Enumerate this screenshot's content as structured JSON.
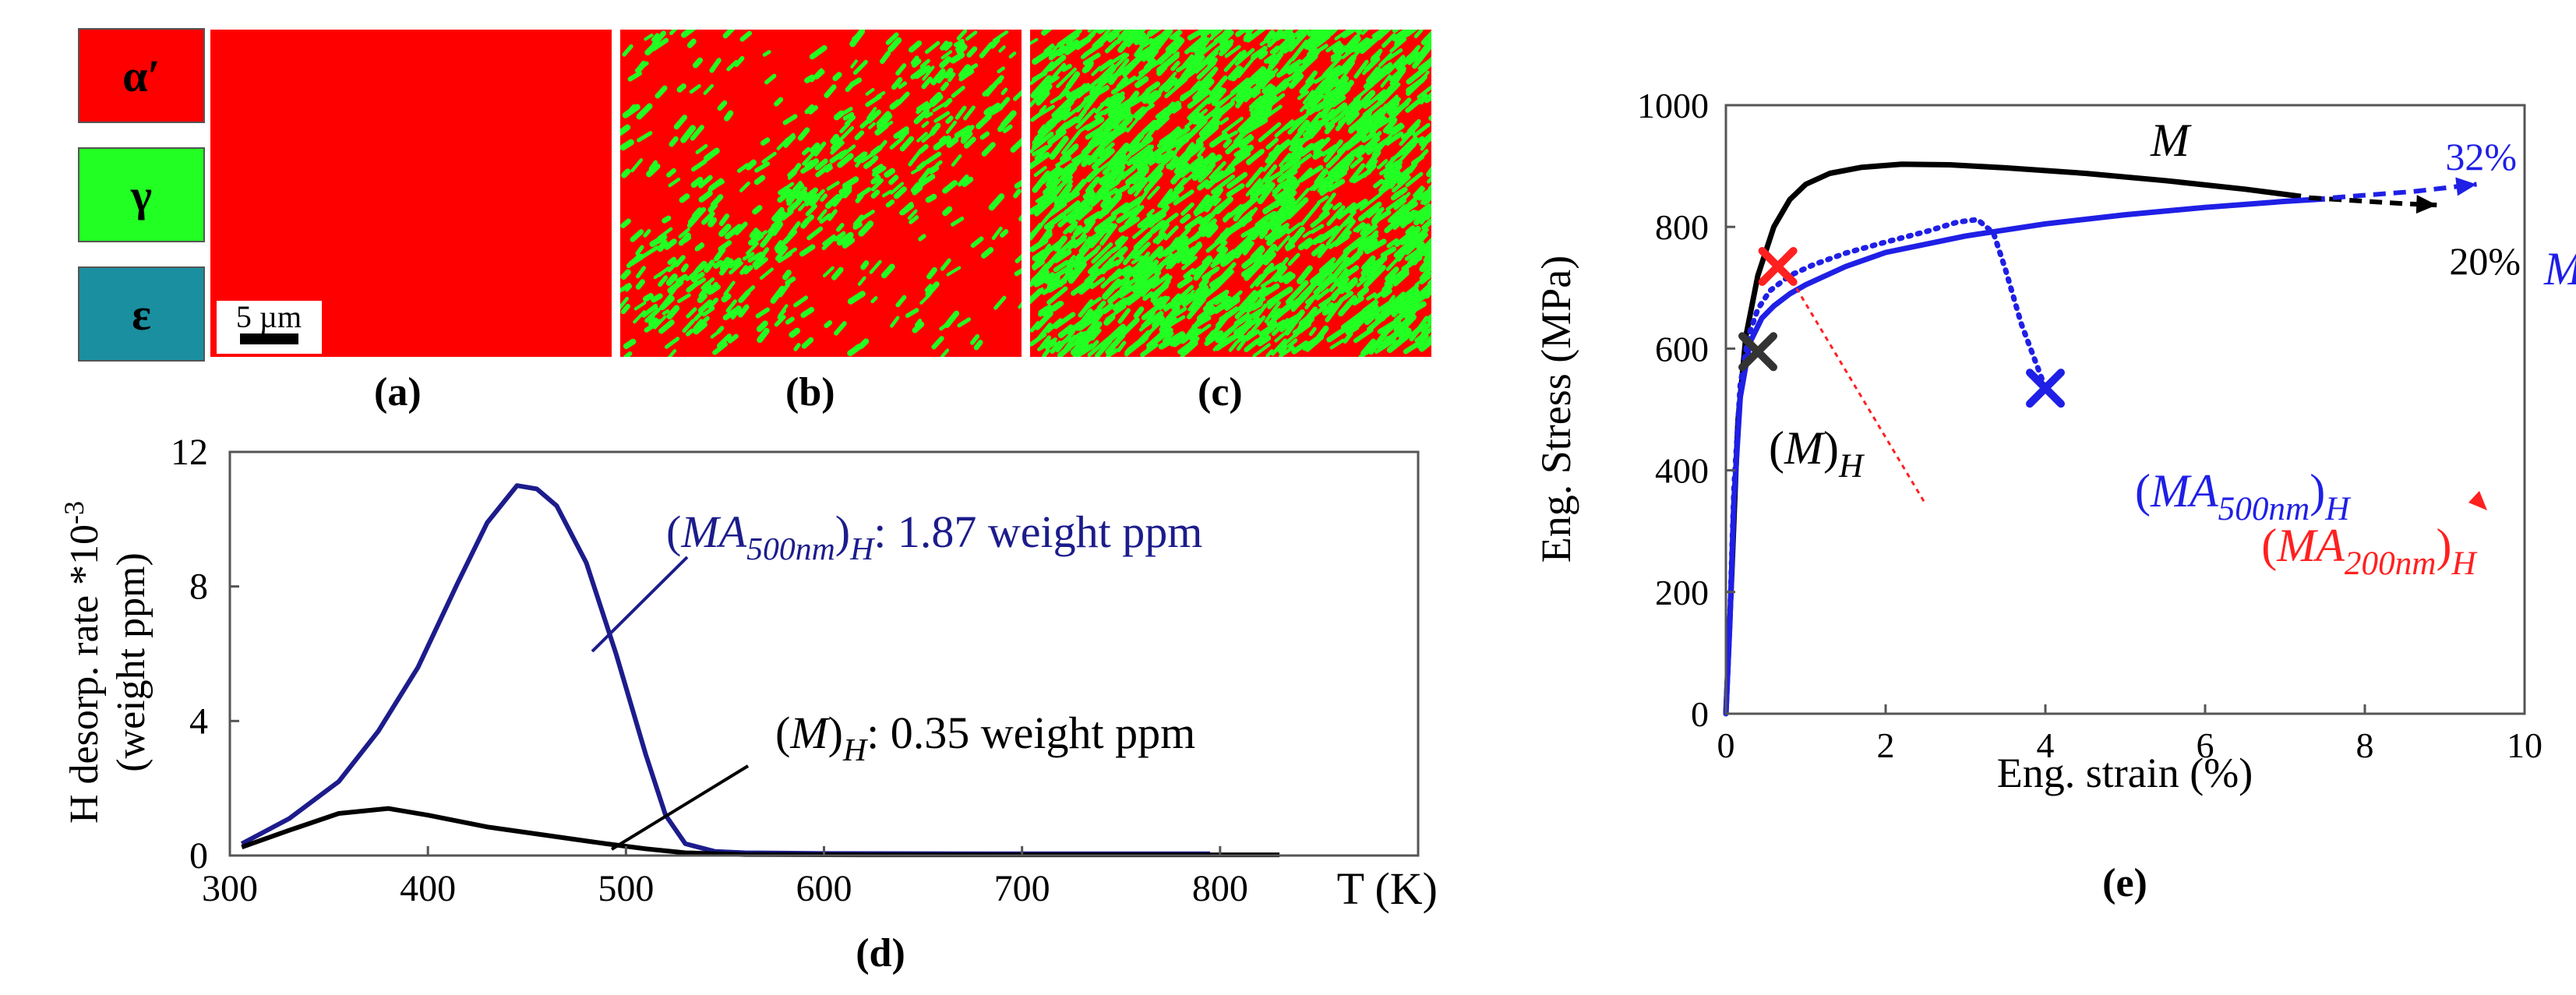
{
  "phase_legend": [
    {
      "label": "α′",
      "color": "#ff0000"
    },
    {
      "label": "γ",
      "color": "#22ff22"
    },
    {
      "label": "ε",
      "color": "#1a8fa0"
    }
  ],
  "micrographs": [
    {
      "label": "(a)",
      "green_fraction": 0.0,
      "scale_bar": "5 µm"
    },
    {
      "label": "(b)",
      "green_fraction": 0.22
    },
    {
      "label": "(c)",
      "green_fraction": 0.45
    }
  ],
  "colors": {
    "red": "#ff0000",
    "green": "#22ff22",
    "teal": "#1a8fa0",
    "navy": "#1c1c8c",
    "blue": "#1f1fe6",
    "black": "#000000"
  },
  "chart_data": [
    {
      "type": "line",
      "panel_label": "(d)",
      "ylabel": "H desorp. rate *10",
      "ylabel_exp": "-3",
      "ylabel2": "(weight ppm)",
      "xlabel": "T (K)",
      "xlim": [
        300,
        900
      ],
      "ylim": [
        0,
        12
      ],
      "xticks": [
        300,
        400,
        500,
        600,
        700,
        800
      ],
      "yticks": [
        0,
        4,
        8,
        12
      ],
      "series": [
        {
          "label_pre": "(",
          "label_main": "MA",
          "label_sub1": "500nm",
          "label_post": ")",
          "label_sub2": "H",
          "label_value": ": 1.87 weight ppm",
          "color": "#1c1c8c",
          "x": [
            306,
            330,
            355,
            375,
            395,
            415,
            430,
            445,
            455,
            465,
            480,
            495,
            510,
            520,
            530,
            545,
            560,
            600,
            700,
            795
          ],
          "y": [
            0.35,
            1.1,
            2.2,
            3.7,
            5.6,
            8.1,
            9.9,
            11.0,
            10.9,
            10.4,
            8.7,
            6.0,
            3.0,
            1.2,
            0.35,
            0.12,
            0.08,
            0.06,
            0.05,
            0.05
          ]
        },
        {
          "label_pre": "(",
          "label_main": "M",
          "label_post": ")",
          "label_sub2": "H",
          "label_value": ": 0.35 weight ppm",
          "color": "#000000",
          "x": [
            306,
            330,
            355,
            380,
            400,
            430,
            460,
            490,
            510,
            530,
            560,
            620,
            700,
            830
          ],
          "y": [
            0.25,
            0.75,
            1.25,
            1.4,
            1.2,
            0.85,
            0.6,
            0.35,
            0.2,
            0.08,
            0.03,
            0.02,
            0.02,
            0.02
          ]
        }
      ]
    },
    {
      "type": "line",
      "panel_label": "(e)",
      "xlabel": "Eng. strain (%)",
      "ylabel": "Eng. Stress (MPa)",
      "xlim": [
        0,
        10
      ],
      "ylim": [
        0,
        1000
      ],
      "xticks": [
        0,
        2,
        4,
        6,
        8,
        10
      ],
      "yticks": [
        0,
        200,
        400,
        600,
        800,
        1000
      ],
      "series": [
        {
          "name": "M",
          "color": "#000000",
          "x": [
            0,
            0.08,
            0.15,
            0.25,
            0.4,
            0.6,
            0.8,
            1.0,
            1.3,
            1.7,
            2.2,
            2.8,
            3.5,
            4.5,
            5.5,
            6.5,
            7.2
          ],
          "y": [
            0,
            250,
            480,
            620,
            720,
            800,
            845,
            870,
            888,
            898,
            903,
            902,
            897,
            888,
            876,
            862,
            850
          ],
          "break_extension": {
            "x": [
              7.3,
              8.5,
              8.9
            ],
            "y": [
              848,
              838,
              836
            ],
            "end_label": "20%"
          }
        },
        {
          "name": "MA",
          "name_sub": "500nm",
          "color": "#1f1fe6",
          "x": [
            0,
            0.05,
            0.1,
            0.18,
            0.3,
            0.45,
            0.6,
            0.8,
            1.0,
            1.5,
            2.0,
            3.0,
            4.0,
            5.0,
            6.0,
            7.0,
            7.5
          ],
          "y": [
            0,
            150,
            350,
            520,
            610,
            650,
            670,
            690,
            705,
            735,
            758,
            785,
            805,
            820,
            832,
            842,
            846
          ],
          "break_extension": {
            "x": [
              7.6,
              8.6,
              9.4
            ],
            "y": [
              848,
              858,
              870
            ],
            "end_label": "32%"
          }
        },
        {
          "name": "(MA200nm)H",
          "color": "#1f1fe6",
          "x": [
            0,
            0.05,
            0.1,
            0.18,
            0.28,
            0.4,
            0.55,
            0.8,
            1.1,
            1.5,
            2.0,
            2.5,
            2.9,
            3.15,
            3.35,
            3.5,
            3.7,
            3.9,
            4.0
          ],
          "y": [
            0,
            160,
            370,
            540,
            620,
            665,
            695,
            720,
            738,
            757,
            775,
            792,
            808,
            812,
            790,
            730,
            640,
            570,
            535
          ]
        }
      ],
      "fracture_points": [
        {
          "label_pre": "(",
          "label_main": "M",
          "label_post": ")",
          "label_sub2": "H",
          "x": 0.4,
          "y": 595,
          "color": "#333333"
        },
        {
          "label_pre": "(",
          "label_main": "MA",
          "label_sub1": "200nm",
          "label_post": ")",
          "label_sub2": "H",
          "x": 0.65,
          "y": 735,
          "color": "#ff2020"
        },
        {
          "label_pre": "(",
          "label_main": "MA",
          "label_sub1": "500nm",
          "label_post": ")",
          "label_sub2": "H",
          "x": 4.0,
          "y": 535,
          "color": "#1f1fe6"
        }
      ]
    }
  ]
}
